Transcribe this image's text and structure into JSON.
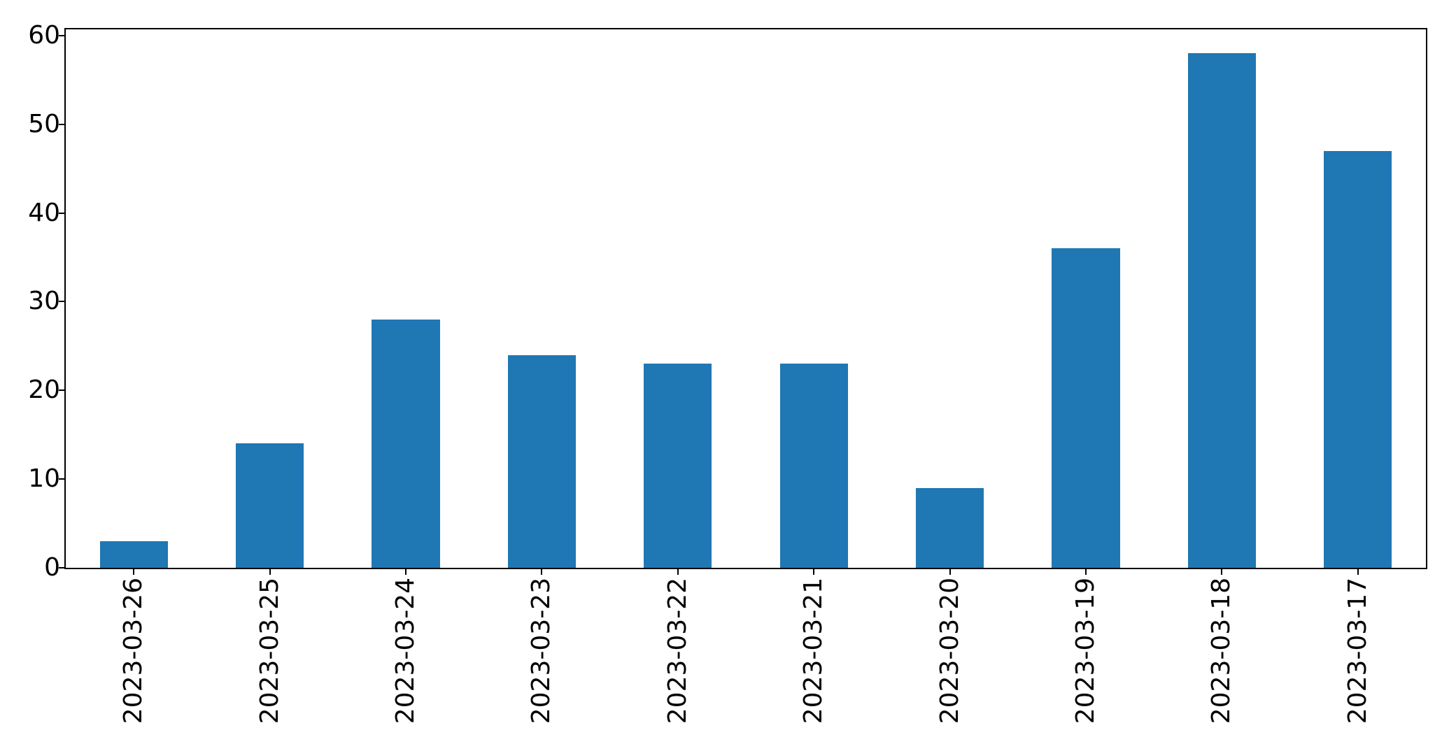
{
  "figure": {
    "background": "#ffffff"
  },
  "chart_data": {
    "type": "bar",
    "title": "",
    "xlabel": "",
    "ylabel": "",
    "categories": [
      "2023-03-26",
      "2023-03-25",
      "2023-03-24",
      "2023-03-23",
      "2023-03-22",
      "2023-03-21",
      "2023-03-20",
      "2023-03-19",
      "2023-03-18",
      "2023-03-17"
    ],
    "values": [
      3,
      14,
      28,
      24,
      23,
      23,
      9,
      36,
      58,
      47
    ],
    "yticks": [
      0,
      10,
      20,
      30,
      40,
      50,
      60
    ],
    "ylim": [
      0,
      60.7
    ],
    "x_tick_rotation_deg": 90,
    "bar_relative_width": 0.5,
    "bar_color": "#1f77b4",
    "axis_color": "#000000",
    "tick_label_color": "#000000",
    "grid": false,
    "legend": "none"
  }
}
